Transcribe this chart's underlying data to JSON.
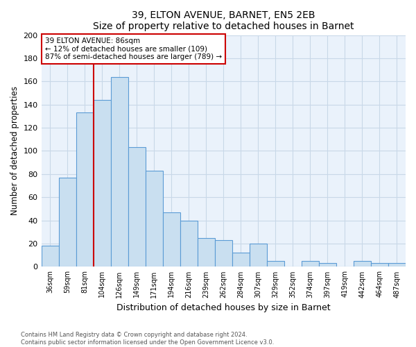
{
  "title": "39, ELTON AVENUE, BARNET, EN5 2EB",
  "subtitle": "Size of property relative to detached houses in Barnet",
  "xlabel": "Distribution of detached houses by size in Barnet",
  "ylabel": "Number of detached properties",
  "bar_labels": [
    "36sqm",
    "59sqm",
    "81sqm",
    "104sqm",
    "126sqm",
    "149sqm",
    "171sqm",
    "194sqm",
    "216sqm",
    "239sqm",
    "262sqm",
    "284sqm",
    "307sqm",
    "329sqm",
    "352sqm",
    "374sqm",
    "397sqm",
    "419sqm",
    "442sqm",
    "464sqm",
    "487sqm"
  ],
  "bar_values": [
    18,
    77,
    133,
    144,
    164,
    103,
    83,
    47,
    40,
    25,
    23,
    12,
    20,
    5,
    0,
    5,
    3,
    0,
    5,
    3,
    3
  ],
  "bar_color": "#c9dff0",
  "bar_edge_color": "#5b9bd5",
  "vline_x_index": 2,
  "vline_color": "#cc0000",
  "annotation_title": "39 ELTON AVENUE: 86sqm",
  "annotation_line1": "← 12% of detached houses are smaller (109)",
  "annotation_line2": "87% of semi-detached houses are larger (789) →",
  "annotation_box_color": "#ffffff",
  "annotation_box_edge": "#cc0000",
  "ylim": [
    0,
    200
  ],
  "yticks": [
    0,
    20,
    40,
    60,
    80,
    100,
    120,
    140,
    160,
    180,
    200
  ],
  "footer1": "Contains HM Land Registry data © Crown copyright and database right 2024.",
  "footer2": "Contains public sector information licensed under the Open Government Licence v3.0.",
  "background_color": "#ffffff",
  "grid_color": "#c8d8e8",
  "plot_bg_color": "#eaf2fb"
}
